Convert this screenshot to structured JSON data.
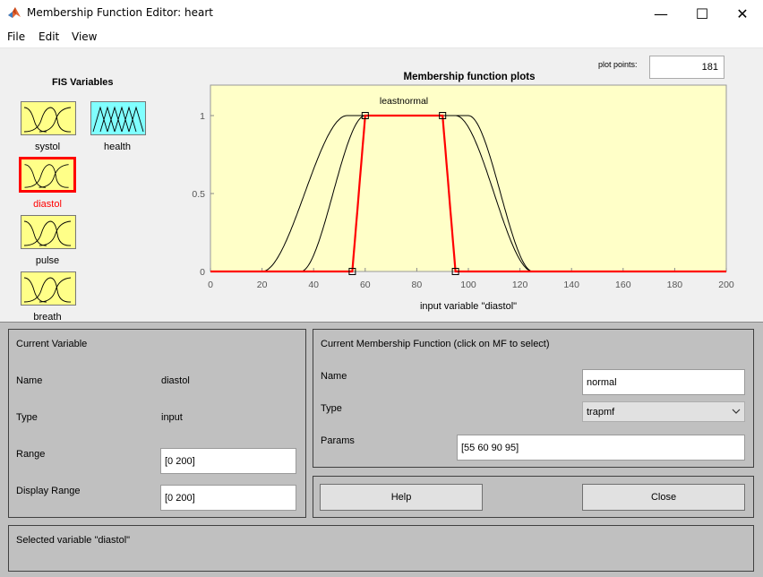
{
  "window": {
    "title": "Membership Function Editor: heart"
  },
  "menu": [
    "File",
    "Edit",
    "View"
  ],
  "fis": {
    "heading": "FIS Variables",
    "variables": [
      {
        "name": "systol",
        "color": "#ffff88"
      },
      {
        "name": "health",
        "color": "#80ffff"
      },
      {
        "name": "diastol",
        "color": "#ffff88",
        "selected": true
      },
      {
        "name": "pulse",
        "color": "#ffff88"
      },
      {
        "name": "breath",
        "color": "#ffff88"
      }
    ]
  },
  "plot": {
    "points_label": "plot points:",
    "points_value": "181",
    "plot_bg": "#ffffc8",
    "highlight_color": "#ff0000"
  },
  "chart_data": {
    "type": "line",
    "title": "Membership function plots",
    "xlabel": "input variable \"diastol\"",
    "ylabel": "",
    "xlim": [
      0,
      200
    ],
    "ylim": [
      0,
      1.1
    ],
    "xticks": [
      0,
      20,
      40,
      60,
      80,
      100,
      120,
      140,
      160,
      180,
      200
    ],
    "yticks": [
      0,
      0.5,
      1
    ],
    "mf_labels_overlap": "leastnormal",
    "series": [
      {
        "shape": "gaussian-trap",
        "params": [
          20,
          53,
          100,
          125
        ],
        "highlighted": false
      },
      {
        "shape": "gaussian-trap",
        "params": [
          35,
          60,
          95,
          125
        ],
        "highlighted": false
      },
      {
        "name": "normal",
        "shape": "trapmf",
        "params": [
          55,
          60,
          90,
          95
        ],
        "highlighted": true
      }
    ]
  },
  "current_variable": {
    "heading": "Current Variable",
    "name_label": "Name",
    "name_value": "diastol",
    "type_label": "Type",
    "type_value": "input",
    "range_label": "Range",
    "range_value": "[0 200]",
    "display_range_label": "Display Range",
    "display_range_value": "[0 200]"
  },
  "current_mf": {
    "heading": "Current Membership Function (click on MF to select)",
    "name_label": "Name",
    "name_value": "normal",
    "type_label": "Type",
    "type_value": "trapmf",
    "params_label": "Params",
    "params_value": "[55 60 90 95]"
  },
  "buttons": {
    "help": "Help",
    "close": "Close"
  },
  "status": "Selected variable \"diastol\""
}
